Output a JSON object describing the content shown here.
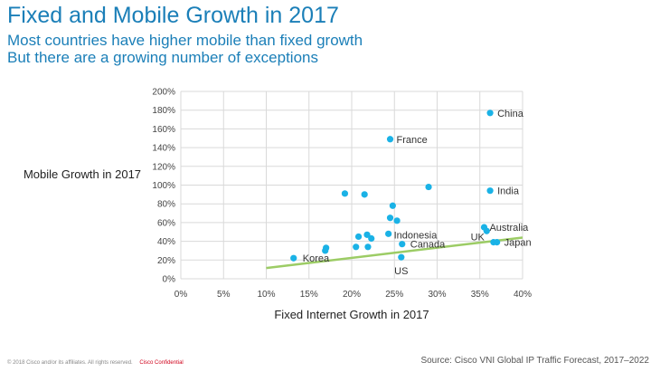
{
  "chart_data": {
    "type": "scatter",
    "title": "Fixed and Mobile Growth in 2017",
    "subtitle_lines": [
      "Most countries have higher mobile than fixed growth",
      "But there are a growing number of exceptions"
    ],
    "xlabel": "Fixed Internet Growth in 2017",
    "ylabel": "Mobile Growth in 2017",
    "xlim": [
      0,
      40
    ],
    "ylim": [
      0,
      200
    ],
    "x_ticks": [
      "0%",
      "5%",
      "10%",
      "15%",
      "20%",
      "25%",
      "30%",
      "35%",
      "40%"
    ],
    "y_ticks": [
      "0%",
      "20%",
      "40%",
      "60%",
      "80%",
      "100%",
      "120%",
      "140%",
      "160%",
      "180%",
      "200%"
    ],
    "grid": true,
    "point_color": "#1ab2e6",
    "trend_color": "#9ccc65",
    "trendline": [
      [
        10,
        11.5
      ],
      [
        40,
        44
      ]
    ],
    "points": [
      {
        "x": 36.2,
        "y": 177,
        "label": "China"
      },
      {
        "x": 24.5,
        "y": 149,
        "label": "France"
      },
      {
        "x": 36.2,
        "y": 94,
        "label": "India"
      },
      {
        "x": 29.0,
        "y": 98,
        "label": ""
      },
      {
        "x": 19.2,
        "y": 91,
        "label": ""
      },
      {
        "x": 21.5,
        "y": 90,
        "label": ""
      },
      {
        "x": 24.8,
        "y": 78,
        "label": ""
      },
      {
        "x": 24.5,
        "y": 65,
        "label": ""
      },
      {
        "x": 25.3,
        "y": 62,
        "label": ""
      },
      {
        "x": 35.5,
        "y": 55,
        "label": "Australia"
      },
      {
        "x": 35.8,
        "y": 51,
        "label": ""
      },
      {
        "x": 24.3,
        "y": 48,
        "label": "Indonesia"
      },
      {
        "x": 21.8,
        "y": 47,
        "label": ""
      },
      {
        "x": 20.8,
        "y": 45,
        "label": ""
      },
      {
        "x": 22.3,
        "y": 43,
        "label": ""
      },
      {
        "x": 36.6,
        "y": 39,
        "label": "UK"
      },
      {
        "x": 37.0,
        "y": 39,
        "label": "Japan"
      },
      {
        "x": 25.9,
        "y": 37,
        "label": "Canada"
      },
      {
        "x": 20.5,
        "y": 34,
        "label": ""
      },
      {
        "x": 21.9,
        "y": 34,
        "label": ""
      },
      {
        "x": 17.0,
        "y": 33,
        "label": ""
      },
      {
        "x": 16.9,
        "y": 30,
        "label": ""
      },
      {
        "x": 13.2,
        "y": 22,
        "label": "Korea"
      },
      {
        "x": 25.8,
        "y": 23,
        "label": "US"
      }
    ]
  },
  "footer": {
    "copyright": "© 2018 Cisco and/or its affiliates. All rights reserved.",
    "confidential": "Cisco Confidential",
    "source": "Source: Cisco VNI Global IP Traffic Forecast, 2017–2022"
  }
}
